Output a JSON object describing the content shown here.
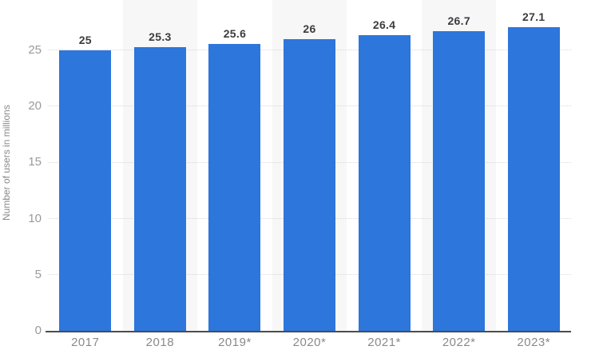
{
  "chart_data": {
    "type": "bar",
    "categories": [
      "2017",
      "2018",
      "2019*",
      "2020*",
      "2021*",
      "2022*",
      "2023*"
    ],
    "values": [
      25,
      25.3,
      25.6,
      26,
      26.4,
      26.7,
      27.1
    ],
    "value_labels": [
      "25",
      "25.3",
      "25.6",
      "26",
      "26.4",
      "26.7",
      "27.1"
    ],
    "title": "",
    "xlabel": "",
    "ylabel": "Number of users in millions",
    "yticks": [
      0,
      5,
      10,
      15,
      20,
      25
    ],
    "ylim": [
      0,
      29.5
    ],
    "grid": "horizontal-dotted",
    "legend": "none",
    "background_stripes": "alternating columns behind 2018, 2020*, 2022*",
    "colors": {
      "bar": "#2d76dc",
      "stripe": "#f7f7f7",
      "gridline": "#d8d8d8",
      "axis_line": "#4d4d4d",
      "tick_label": "#9a9a9a",
      "x_label": "#8a8a8a",
      "value_label": "#3c3c3c"
    }
  }
}
